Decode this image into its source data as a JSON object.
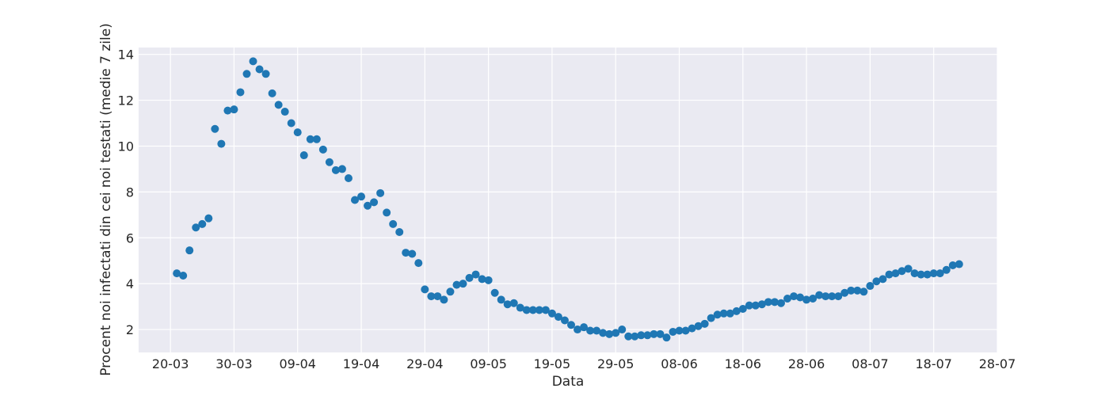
{
  "chart_data": {
    "type": "scatter",
    "xlabel": "Data",
    "ylabel": "Procent noi infectati din cei noi testati (medie 7 zile)",
    "x_tick_labels": [
      "20-03",
      "30-03",
      "09-04",
      "19-04",
      "29-04",
      "09-05",
      "19-05",
      "29-05",
      "08-06",
      "18-06",
      "28-06",
      "08-07",
      "18-07",
      "28-07"
    ],
    "y_ticks": [
      2,
      4,
      6,
      8,
      10,
      12,
      14
    ],
    "xlim": [
      "2020-03-15",
      "2020-07-28"
    ],
    "ylim": [
      1.0,
      14.3
    ],
    "grid": true,
    "background_color": "#eaeaf2",
    "marker_color": "#1f77b4",
    "series": [
      {
        "x_start": "2020-03-21",
        "x_step_days": 1,
        "values": [
          4.45,
          4.35,
          5.45,
          6.45,
          6.6,
          6.85,
          10.75,
          10.1,
          11.55,
          11.6,
          12.35,
          13.15,
          13.7,
          13.35,
          13.15,
          12.3,
          11.8,
          11.5,
          11.0,
          10.6,
          9.6,
          10.3,
          10.3,
          9.85,
          9.3,
          8.95,
          9.0,
          8.6,
          7.65,
          7.8,
          7.4,
          7.55,
          7.95,
          7.1,
          6.6,
          6.25,
          5.35,
          5.3,
          4.9,
          3.75,
          3.45,
          3.45,
          3.3,
          3.65,
          3.95,
          4.0,
          4.25,
          4.4,
          4.2,
          4.15,
          3.6,
          3.3,
          3.1,
          3.15,
          2.95,
          2.85,
          2.85,
          2.85,
          2.85,
          2.7,
          2.55,
          2.4,
          2.2,
          2.0,
          2.1,
          1.95,
          1.95,
          1.85,
          1.8,
          1.85,
          2.0,
          1.7,
          1.7,
          1.75,
          1.75,
          1.8,
          1.8,
          1.65,
          1.9,
          1.95,
          1.95,
          2.05,
          2.15,
          2.25,
          2.5,
          2.65,
          2.7,
          2.7,
          2.8,
          2.9,
          3.05,
          3.05,
          3.1,
          3.2,
          3.2,
          3.15,
          3.35,
          3.45,
          3.4,
          3.3,
          3.35,
          3.5,
          3.45,
          3.45,
          3.45,
          3.6,
          3.7,
          3.7,
          3.65,
          3.9,
          4.1,
          4.2,
          4.4,
          4.45,
          4.55,
          4.65,
          4.45,
          4.4,
          4.4,
          4.45,
          4.45,
          4.6,
          4.8,
          4.85
        ]
      }
    ]
  }
}
